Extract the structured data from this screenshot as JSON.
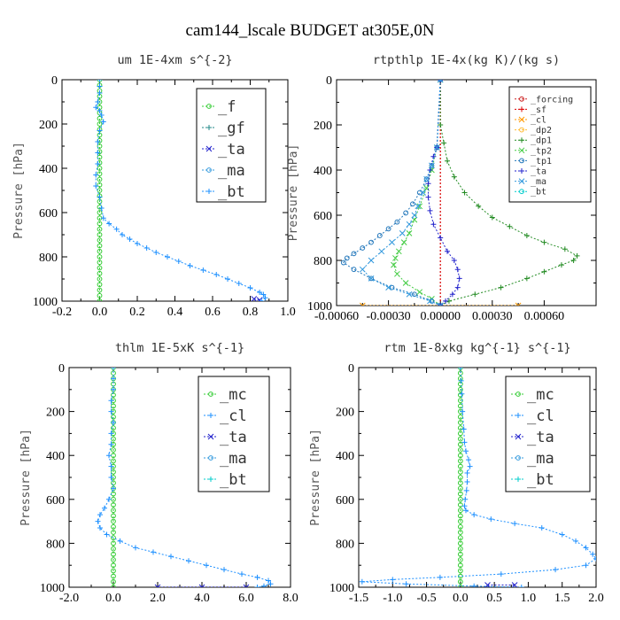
{
  "suptitle": "cam144_lscale  BUDGET at305E,0N",
  "chart_data": [
    {
      "type": "line",
      "title": "um  1E-4xm s^{-2}",
      "ylabel": "Pressure [hPa]",
      "xlim": [
        -0.2,
        1.0
      ],
      "ylim": [
        1000,
        0
      ],
      "xticks": [
        -0.2,
        0.0,
        0.2,
        0.4,
        0.6,
        0.8,
        1.0
      ],
      "xticklabels": [
        "-0.2",
        "0.0",
        "0.2",
        "0.4",
        "0.6",
        "0.8",
        "1.0"
      ],
      "yticks": [
        0,
        200,
        400,
        600,
        800,
        1000
      ],
      "legend_position": "top-right",
      "series": [
        {
          "name": "_f",
          "color": "#33cc33",
          "x": [
            0,
            0,
            0,
            0,
            0,
            0,
            0,
            0,
            0,
            0,
            0,
            0,
            0,
            0,
            0,
            0,
            0,
            0,
            0,
            0,
            0,
            0,
            0,
            0,
            0,
            0,
            0,
            0,
            0,
            0,
            0,
            0,
            0,
            0,
            0,
            0,
            0,
            0,
            0,
            0,
            0
          ],
          "y": [
            0,
            25,
            50,
            75,
            100,
            125,
            150,
            175,
            200,
            225,
            250,
            275,
            300,
            325,
            350,
            375,
            400,
            425,
            450,
            475,
            500,
            525,
            550,
            575,
            600,
            625,
            650,
            675,
            700,
            725,
            750,
            775,
            800,
            825,
            850,
            875,
            900,
            925,
            950,
            975,
            1000
          ]
        },
        {
          "name": "_gf",
          "color": "#228888",
          "x": [],
          "y": []
        },
        {
          "name": "_ta",
          "color": "#2222cc",
          "x": [
            0.82,
            0.85
          ],
          "y": [
            990,
            995
          ]
        },
        {
          "name": "_ma",
          "color": "#3399dd",
          "x": [],
          "y": []
        },
        {
          "name": "_bt",
          "color": "#1e90ff",
          "x": [
            0.0,
            0.0,
            0.0,
            -0.01,
            -0.02,
            0.0,
            0.01,
            0.02,
            0.0,
            -0.01,
            -0.01,
            -0.01,
            -0.02,
            -0.02,
            0.0,
            0.01,
            0.02,
            0.05,
            0.09,
            0.12,
            0.16,
            0.2,
            0.25,
            0.3,
            0.36,
            0.42,
            0.48,
            0.55,
            0.62,
            0.68,
            0.74,
            0.8,
            0.85,
            0.87,
            0.88,
            0.86
          ],
          "y": [
            0,
            30,
            60,
            100,
            125,
            140,
            160,
            190,
            230,
            280,
            330,
            380,
            430,
            480,
            530,
            580,
            625,
            650,
            675,
            700,
            720,
            740,
            760,
            780,
            800,
            820,
            840,
            860,
            880,
            900,
            920,
            940,
            960,
            970,
            985,
            1000
          ]
        }
      ]
    },
    {
      "type": "line",
      "title": "rtpthlp  1E-4x(kg K)/(kg s)",
      "ylabel": "Pressure [hPa]",
      "xlim": [
        -0.0006,
        0.0009
      ],
      "ylim": [
        1000,
        0
      ],
      "xticks": [
        -0.0006,
        -0.0003,
        0.0,
        0.0003,
        0.0006
      ],
      "xticklabels": [
        "-0.00060",
        "-0.00030",
        "0.00000",
        "0.00030",
        "0.00060"
      ],
      "yticks": [
        0,
        200,
        400,
        600,
        800,
        1000
      ],
      "legend_position": "top-right",
      "series": [
        {
          "name": "_forcing",
          "color": "#cc2222",
          "x": [
            0,
            0
          ],
          "y": [
            0,
            1000
          ]
        },
        {
          "name": "_sf",
          "color": "#dd0000",
          "x": [
            0,
            0
          ],
          "y": [
            0,
            1000
          ]
        },
        {
          "name": "_cl",
          "color": "#ff9900",
          "x": [
            -0.00045,
            0.00045
          ],
          "y": [
            1000,
            1000
          ]
        },
        {
          "name": "_dp2",
          "color": "#ffbb33",
          "x": [],
          "y": []
        },
        {
          "name": "_dp1",
          "color": "#228b22",
          "x": [
            0.0,
            0.0,
            2e-05,
            4e-05,
            8e-05,
            0.00014,
            0.00022,
            0.0003,
            0.0004,
            0.0005,
            0.0006,
            0.00072,
            0.00079,
            0.00077,
            0.0007,
            0.0006,
            0.0005,
            0.00035,
            0.0002,
            5e-05,
            0.0
          ],
          "y": [
            0,
            200,
            280,
            360,
            430,
            500,
            560,
            610,
            650,
            690,
            720,
            750,
            780,
            800,
            820,
            850,
            880,
            920,
            950,
            980,
            1000
          ]
        },
        {
          "name": "_tp2",
          "color": "#44cc44",
          "x": [
            0.0,
            -2e-05,
            -5e-05,
            -8e-05,
            -0.00012,
            -0.00015,
            -0.00018,
            -0.00021,
            -0.00024,
            -0.00026,
            -0.00027,
            -0.00025,
            -0.0002,
            -0.00012,
            -5e-05,
            0.0
          ],
          "y": [
            0,
            300,
            400,
            480,
            560,
            620,
            680,
            720,
            760,
            790,
            820,
            860,
            900,
            940,
            970,
            1000
          ]
        },
        {
          "name": "_tp1",
          "color": "#2277bb",
          "x": [
            0.0,
            -2e-05,
            -5e-05,
            -8e-05,
            -0.00012,
            -0.00016,
            -0.0002,
            -0.00025,
            -0.0003,
            -0.00035,
            -0.0004,
            -0.00045,
            -0.0005,
            -0.00054,
            -0.00056,
            -0.0005,
            -0.0004,
            -0.00028,
            -0.00015,
            -5e-05,
            0.0
          ],
          "y": [
            0,
            300,
            380,
            440,
            500,
            550,
            590,
            630,
            660,
            690,
            720,
            745,
            770,
            790,
            810,
            840,
            880,
            920,
            950,
            980,
            1000
          ]
        },
        {
          "name": "_ta",
          "color": "#2222cc",
          "x": [
            0.0,
            -2e-05,
            -4e-05,
            -6e-05,
            -7e-05,
            -7e-05,
            -6e-05,
            -4e-05,
            0.0,
            4e-05,
            8e-05,
            0.0001,
            0.00011,
            0.0001,
            7e-05,
            3e-05,
            0.0
          ],
          "y": [
            0,
            300,
            340,
            400,
            460,
            520,
            580,
            640,
            700,
            760,
            800,
            840,
            880,
            920,
            950,
            980,
            1000
          ]
        },
        {
          "name": "_ma",
          "color": "#3399dd",
          "x": [
            0.0,
            -2e-05,
            -5e-05,
            -8e-05,
            -0.0001,
            -0.00013,
            -0.00015,
            -0.00018,
            -0.00022,
            -0.00028,
            -0.00034,
            -0.0004,
            -0.00045,
            -0.0004,
            -0.0003,
            -0.00018,
            -6e-05,
            0.0
          ],
          "y": [
            0,
            300,
            380,
            440,
            500,
            560,
            600,
            640,
            680,
            720,
            760,
            800,
            840,
            880,
            920,
            950,
            980,
            1000
          ]
        },
        {
          "name": "_bt",
          "color": "#00cccc",
          "x": [],
          "y": []
        }
      ]
    },
    {
      "type": "line",
      "title": "thlm  1E-5xK s^{-1}",
      "ylabel": "Pressure [hPa]",
      "xlim": [
        -2.0,
        8.0
      ],
      "ylim": [
        1000,
        0
      ],
      "xticks": [
        -2.0,
        0.0,
        2.0,
        4.0,
        6.0,
        8.0
      ],
      "xticklabels": [
        "-2.0",
        "0.0",
        "2.0",
        "4.0",
        "6.0",
        "8.0"
      ],
      "yticks": [
        0,
        200,
        400,
        600,
        800,
        1000
      ],
      "legend_position": "top-right",
      "series": [
        {
          "name": "_mc",
          "color": "#33cc33",
          "x": [
            0,
            0,
            0,
            0,
            0,
            0,
            0,
            0,
            0,
            0,
            0,
            0,
            0,
            0,
            0,
            0,
            0,
            0,
            0,
            0,
            0,
            0,
            0,
            0,
            0,
            0,
            0,
            0,
            0,
            0,
            0,
            0,
            0,
            0,
            0,
            0,
            0,
            0,
            0,
            0,
            0
          ],
          "y": [
            0,
            25,
            50,
            75,
            100,
            125,
            150,
            175,
            200,
            225,
            250,
            275,
            300,
            325,
            350,
            375,
            400,
            425,
            450,
            475,
            500,
            525,
            550,
            575,
            600,
            625,
            650,
            675,
            700,
            725,
            750,
            775,
            800,
            825,
            850,
            875,
            900,
            925,
            950,
            975,
            1000
          ]
        },
        {
          "name": "_cl",
          "color": "#1e90ff",
          "x": [
            0.0,
            0.0,
            0.0,
            -0.1,
            -0.1,
            0.0,
            -0.1,
            -0.1,
            -0.2,
            -0.1,
            -0.1,
            0.0,
            -0.2,
            -0.4,
            -0.6,
            -0.7,
            -0.6,
            -0.3,
            0.3,
            1.0,
            1.8,
            2.6,
            3.4,
            4.2,
            5.0,
            5.8,
            6.5,
            7.0,
            7.1,
            6.8,
            6.5
          ],
          "y": [
            0,
            50,
            100,
            150,
            200,
            250,
            300,
            350,
            400,
            450,
            500,
            550,
            600,
            640,
            670,
            700,
            730,
            760,
            790,
            820,
            840,
            860,
            880,
            900,
            920,
            940,
            955,
            970,
            985,
            995,
            1000
          ]
        },
        {
          "name": "_ta",
          "color": "#2222cc",
          "x": [
            2.0,
            4.0,
            6.0
          ],
          "y": [
            1000,
            1000,
            1000
          ]
        },
        {
          "name": "_ma",
          "color": "#3399dd",
          "x": [],
          "y": []
        },
        {
          "name": "_bt",
          "color": "#00cccc",
          "x": [],
          "y": []
        }
      ]
    },
    {
      "type": "line",
      "title": "rtm  1E-8xkg kg^{-1} s^{-1}",
      "ylabel": "Pressure [hPa]",
      "xlim": [
        -1.5,
        2.0
      ],
      "ylim": [
        1000,
        0
      ],
      "xticks": [
        -1.5,
        -1.0,
        -0.5,
        0.0,
        0.5,
        1.0,
        1.5,
        2.0
      ],
      "xticklabels": [
        "-1.5",
        "-1.0",
        "-0.5",
        "0.0",
        "0.5",
        "1.0",
        "1.5",
        "2.0"
      ],
      "yticks": [
        0,
        200,
        400,
        600,
        800,
        1000
      ],
      "legend_position": "top-right",
      "series": [
        {
          "name": "_mc",
          "color": "#33cc33",
          "x": [
            0,
            0,
            0,
            0,
            0,
            0,
            0,
            0,
            0,
            0,
            0,
            0,
            0,
            0,
            0,
            0,
            0,
            0,
            0,
            0,
            0,
            0,
            0,
            0,
            0,
            0,
            0,
            0,
            0,
            0,
            0,
            0,
            0,
            0,
            0,
            0,
            0,
            0,
            0,
            0,
            0
          ],
          "y": [
            0,
            25,
            50,
            75,
            100,
            125,
            150,
            175,
            200,
            225,
            250,
            275,
            300,
            325,
            350,
            375,
            400,
            425,
            450,
            475,
            500,
            525,
            550,
            575,
            600,
            625,
            650,
            675,
            700,
            725,
            750,
            775,
            800,
            825,
            850,
            875,
            900,
            925,
            950,
            975,
            1000
          ]
        },
        {
          "name": "_cl",
          "color": "#1e90ff",
          "x": [
            0.0,
            0.01,
            0.02,
            0.03,
            0.05,
            0.06,
            0.08,
            0.12,
            0.14,
            0.1,
            0.1,
            0.09,
            0.07,
            0.06,
            0.08,
            0.2,
            0.45,
            0.8,
            1.2,
            1.5,
            1.7,
            1.85,
            1.95,
            2.0,
            1.85,
            1.4,
            0.6,
            -0.3,
            -1.0,
            -1.45,
            -0.8,
            0.2,
            0.9
          ],
          "y": [
            0,
            60,
            120,
            200,
            280,
            340,
            380,
            420,
            450,
            480,
            520,
            560,
            600,
            630,
            650,
            670,
            690,
            710,
            730,
            760,
            790,
            820,
            850,
            870,
            900,
            920,
            940,
            955,
            965,
            975,
            985,
            995,
            1000
          ]
        },
        {
          "name": "_ta",
          "color": "#2222cc",
          "x": [
            0.4,
            0.8
          ],
          "y": [
            990,
            990
          ]
        },
        {
          "name": "_ma",
          "color": "#3399dd",
          "x": [],
          "y": []
        },
        {
          "name": "_bt",
          "color": "#00cccc",
          "x": [],
          "y": []
        }
      ]
    }
  ]
}
